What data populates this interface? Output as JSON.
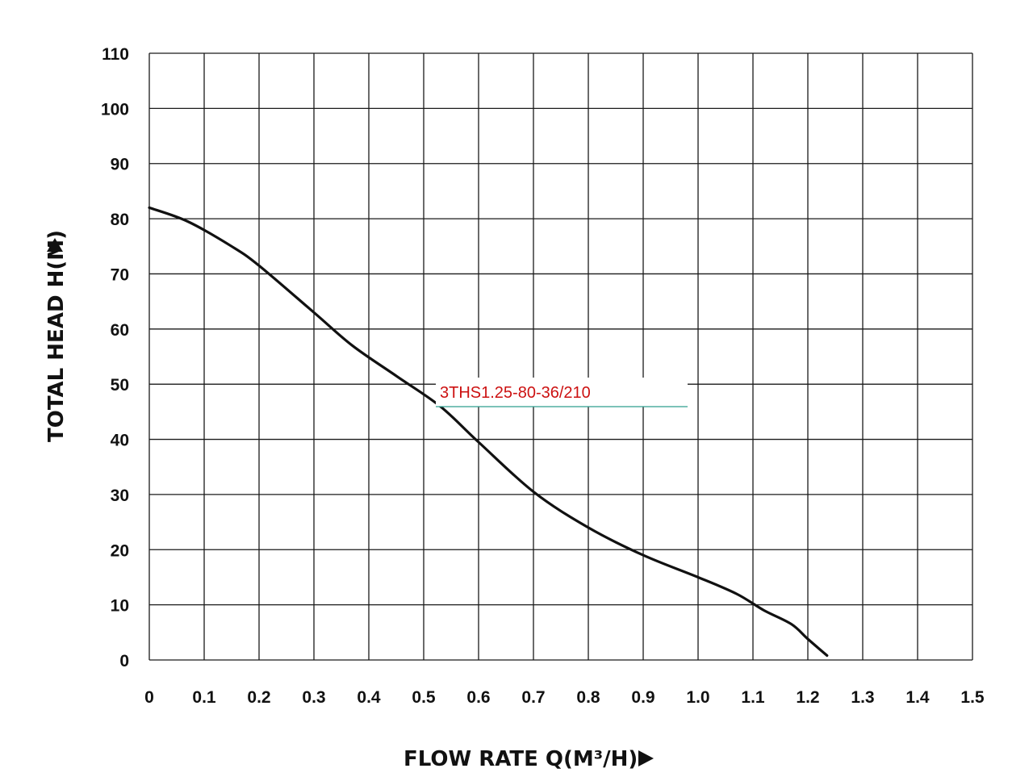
{
  "chart_data": {
    "type": "line",
    "title": "",
    "xlabel": "FLOW RATE Q(M³/H)",
    "ylabel": "TOTAL HEAD H(M)",
    "xlim": [
      0,
      1.5
    ],
    "ylim": [
      0,
      110
    ],
    "x_ticks": [
      "0",
      "0.1",
      "0.2",
      "0.3",
      "0.4",
      "0.5",
      "0.6",
      "0.7",
      "0.8",
      "0.9",
      "1.0",
      "1.1",
      "1.2",
      "1.3",
      "1.4",
      "1.5"
    ],
    "y_ticks": [
      "0",
      "10",
      "20",
      "30",
      "40",
      "50",
      "60",
      "70",
      "80",
      "90",
      "100",
      "110"
    ],
    "grid": true,
    "series": [
      {
        "name": "3THS1.25-80-36/210",
        "x": [
          0,
          0.07,
          0.15,
          0.2,
          0.3,
          0.37,
          0.45,
          0.53,
          0.6,
          0.7,
          0.8,
          0.9,
          1.0,
          1.07,
          1.12,
          1.17,
          1.2,
          1.235
        ],
        "y": [
          82,
          79.5,
          75,
          71.5,
          63,
          57,
          51.5,
          46,
          39.5,
          30.5,
          24,
          19,
          15,
          12,
          9,
          6.5,
          3.8,
          0.8
        ]
      }
    ],
    "annotations": [
      {
        "text": "3THS1.25-80-36/210",
        "color": "#cc1111",
        "underline_color": "#2e9e8e"
      }
    ],
    "colors": {
      "line": "#111111",
      "grid": "#1a1a1a",
      "annotation": "#cc1111",
      "annotation_underline": "#2e9e8e"
    }
  }
}
